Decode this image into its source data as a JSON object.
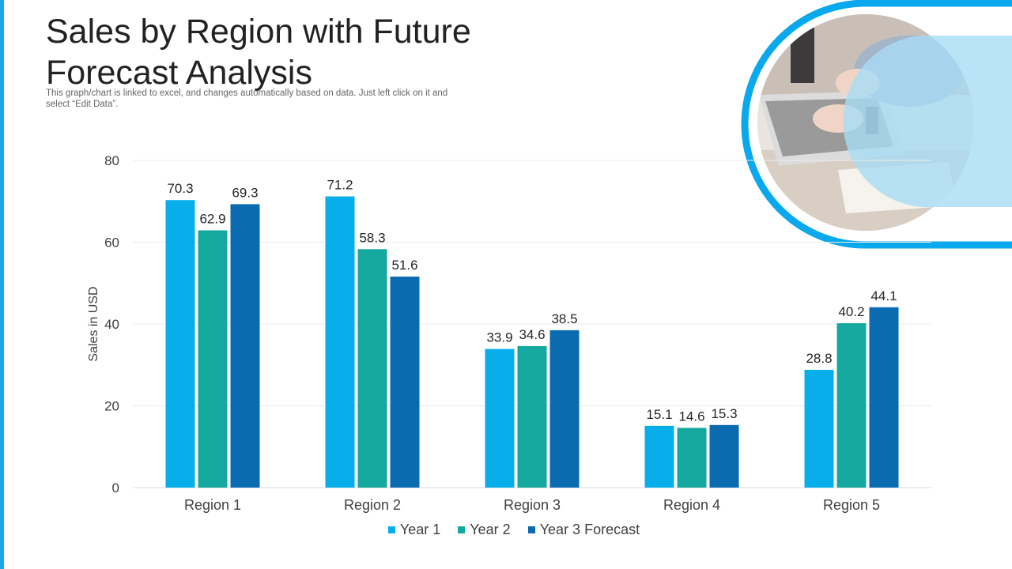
{
  "page": {
    "title": "Sales by Region with Future Forecast Analysis",
    "subtitle": "This graph/chart is linked to excel, and changes automatically based on data. Just left click on it and select “Edit Data”."
  },
  "colors": {
    "accent": "#1ea7e8",
    "year1": "#08aeea",
    "year2": "#14a89e",
    "year3": "#0b6bb0"
  },
  "chart_data": {
    "type": "bar",
    "title": "",
    "xlabel": "",
    "ylabel": "Sales in USD",
    "categories": [
      "Region 1",
      "Region 2",
      "Region 3",
      "Region 4",
      "Region 5"
    ],
    "series": [
      {
        "name": "Year 1",
        "values": [
          70.3,
          71.2,
          33.9,
          15.1,
          28.8
        ]
      },
      {
        "name": "Year 2",
        "values": [
          62.9,
          58.3,
          34.6,
          14.6,
          40.2
        ]
      },
      {
        "name": "Year 3 Forecast",
        "values": [
          69.3,
          51.6,
          38.5,
          15.3,
          44.1
        ]
      }
    ],
    "ylim": [
      0,
      80
    ],
    "yticks": [
      0,
      20,
      40,
      60,
      80
    ],
    "grid": true,
    "legend": "bottom-center"
  }
}
